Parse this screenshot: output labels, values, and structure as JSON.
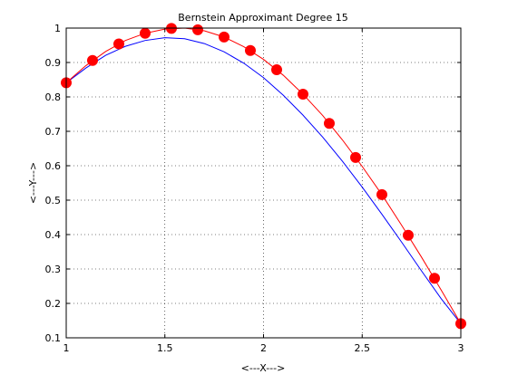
{
  "chart_data": {
    "type": "line",
    "title": "Bernstein Approximant Degree 15",
    "xlabel": "<---X--->",
    "ylabel": "<---Y--->",
    "xlim": [
      1,
      3
    ],
    "ylim": [
      0.1,
      1
    ],
    "xticks": [
      "1",
      "1.5",
      "2",
      "2.5",
      "3"
    ],
    "xtick_values": [
      1,
      1.5,
      2,
      2.5,
      3
    ],
    "yticks": [
      "0.1",
      "0.2",
      "0.3",
      "0.4",
      "0.5",
      "0.6",
      "0.7",
      "0.8",
      "0.9",
      "1"
    ],
    "ytick_values": [
      0.1,
      0.2,
      0.3,
      0.4,
      0.5,
      0.6,
      0.7,
      0.8,
      0.9,
      1.0
    ],
    "grid": true,
    "series": [
      {
        "kind": "line",
        "color": "#0000ff",
        "x": [
          1.0,
          1.1,
          1.2,
          1.3,
          1.4,
          1.5,
          1.6,
          1.7,
          1.8,
          1.9,
          2.0,
          2.1,
          2.2,
          2.3,
          2.4,
          2.5,
          2.6,
          2.7,
          2.8,
          2.9,
          3.0
        ],
        "y": [
          0.841,
          0.884,
          0.921,
          0.947,
          0.964,
          0.972,
          0.969,
          0.955,
          0.931,
          0.898,
          0.856,
          0.805,
          0.747,
          0.683,
          0.613,
          0.538,
          0.459,
          0.378,
          0.295,
          0.214,
          0.141
        ]
      },
      {
        "kind": "line",
        "color": "#ff0000",
        "x": [
          1.0,
          1.1,
          1.2,
          1.3,
          1.4,
          1.5,
          1.6,
          1.7,
          1.8,
          1.9,
          2.0,
          2.1,
          2.2,
          2.3,
          2.4,
          2.5,
          2.6,
          2.7,
          2.8,
          2.9,
          3.0
        ],
        "y": [
          0.841,
          0.891,
          0.932,
          0.964,
          0.985,
          0.997,
          1.0,
          0.992,
          0.974,
          0.946,
          0.909,
          0.863,
          0.808,
          0.746,
          0.675,
          0.598,
          0.516,
          0.427,
          0.335,
          0.239,
          0.141
        ]
      },
      {
        "kind": "scatter",
        "color": "#ff0000",
        "x": [
          1.0,
          1.1333,
          1.2667,
          1.4,
          1.5333,
          1.6667,
          1.8,
          1.9333,
          2.0667,
          2.2,
          2.3333,
          2.4667,
          2.6,
          2.7333,
          2.8667,
          3.0
        ],
        "y": [
          0.841,
          0.906,
          0.954,
          0.985,
          0.999,
          0.995,
          0.974,
          0.935,
          0.879,
          0.808,
          0.723,
          0.624,
          0.516,
          0.398,
          0.273,
          0.141
        ]
      }
    ]
  }
}
